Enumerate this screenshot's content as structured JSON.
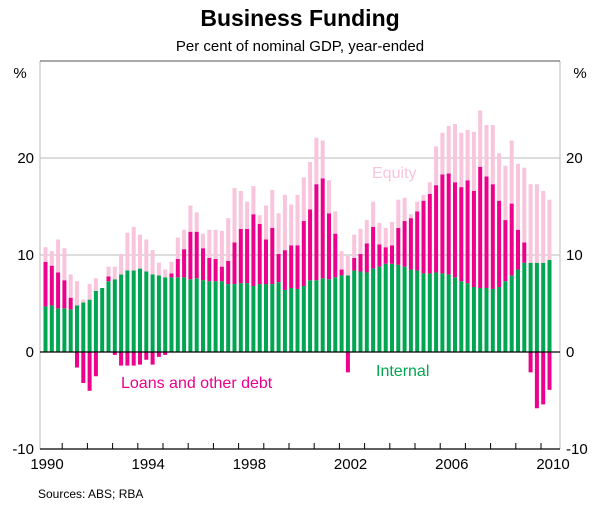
{
  "chart_data": {
    "type": "bar",
    "stacked": true,
    "title": "Business Funding",
    "subtitle": "Per cent of nominal GDP, year-ended",
    "ylabel_left": "%",
    "ylabel_right": "%",
    "ylim": [
      -10,
      30
    ],
    "yticks": [
      20,
      10,
      0,
      -10
    ],
    "xtick_labels": [
      "1990",
      "1994",
      "1998",
      "2002",
      "2006",
      "2010"
    ],
    "x_start": "1990 Q1",
    "frequency": "quarterly",
    "grid": true,
    "source": "Sources: ABS; RBA",
    "colors": {
      "internal": "#00a651",
      "debt": "#ec008c",
      "equity": "#f9c5dc"
    },
    "series": [
      {
        "name": "Internal",
        "key": "internal",
        "values": [
          4.7,
          4.8,
          4.5,
          4.5,
          4.4,
          4.8,
          5.1,
          5.4,
          6.3,
          6.6,
          7.3,
          7.5,
          8.0,
          8.4,
          8.4,
          8.6,
          8.3,
          8.0,
          7.9,
          7.7,
          7.7,
          7.7,
          7.7,
          7.5,
          7.6,
          7.4,
          7.3,
          7.3,
          7.3,
          7.0,
          7.0,
          7.1,
          7.1,
          6.8,
          7.0,
          7.0,
          7.0,
          7.2,
          6.4,
          6.6,
          6.5,
          6.8,
          7.4,
          7.4,
          7.6,
          7.5,
          7.7,
          7.9,
          7.9,
          8.4,
          8.3,
          8.2,
          8.6,
          8.8,
          9.1,
          9.1,
          9.0,
          8.8,
          8.5,
          8.4,
          8.1,
          8.1,
          8.2,
          8.1,
          8.0,
          7.7,
          7.3,
          7.1,
          6.7,
          6.6,
          6.6,
          6.5,
          6.7,
          7.3,
          7.9,
          8.5,
          9.2,
          9.2,
          9.2,
          9.2,
          9.5
        ]
      },
      {
        "name": "Loans and other debt",
        "key": "debt",
        "values": [
          4.6,
          4.1,
          3.7,
          2.9,
          1.2,
          -1.6,
          -3.2,
          -4.0,
          -2.5,
          0,
          0.5,
          -0.3,
          -1.4,
          -1.4,
          -1.4,
          -1.3,
          -0.8,
          -1.3,
          -0.5,
          -0.3,
          0.4,
          1.9,
          2.9,
          4.9,
          4.8,
          3.3,
          2.4,
          2.3,
          1.5,
          2.4,
          4.3,
          5.6,
          5.6,
          7.4,
          6.2,
          4.6,
          5.8,
          2.9,
          4.1,
          4.4,
          4.5,
          6.7,
          7.3,
          9.9,
          10.3,
          6.8,
          4.5,
          0.6,
          -2.1,
          1.3,
          1.8,
          3.0,
          4.3,
          2.3,
          1.7,
          1.9,
          3.8,
          4.7,
          5.3,
          6.1,
          7.5,
          8.2,
          9.0,
          10.2,
          10.4,
          9.8,
          9.7,
          10.6,
          9.9,
          12.5,
          11.5,
          10.8,
          8.9,
          6.3,
          7.4,
          4.1,
          2.1,
          -2.1,
          -5.8,
          -5.4,
          -3.9
        ]
      },
      {
        "name": "Equity",
        "key": "equity",
        "values": [
          1.5,
          1.5,
          3.4,
          3.3,
          2.4,
          2.5,
          0.3,
          1.6,
          1.3,
          0,
          1.0,
          1.3,
          2.1,
          3.9,
          4.5,
          3.5,
          3.3,
          2.5,
          1.3,
          0.8,
          1.2,
          2.2,
          2.0,
          2.7,
          2.0,
          1.5,
          2.9,
          3.0,
          3.7,
          4.4,
          5.6,
          3.9,
          2.8,
          2.9,
          0.9,
          3.5,
          3.9,
          4.2,
          5.7,
          4.2,
          5.2,
          4.5,
          4.9,
          4.8,
          3.9,
          3.4,
          2.3,
          1.9,
          2.0,
          2.4,
          2.6,
          2.4,
          2.6,
          2.2,
          2.0,
          2.4,
          2.9,
          2.4,
          0.4,
          1.0,
          0.6,
          1.2,
          4.0,
          4.3,
          4.9,
          6.0,
          5.6,
          5.2,
          6.1,
          5.8,
          5.3,
          6.1,
          4.9,
          5.6,
          6.5,
          6.8,
          7.7,
          8.1,
          8.1,
          7.4,
          6.2
        ]
      }
    ]
  }
}
